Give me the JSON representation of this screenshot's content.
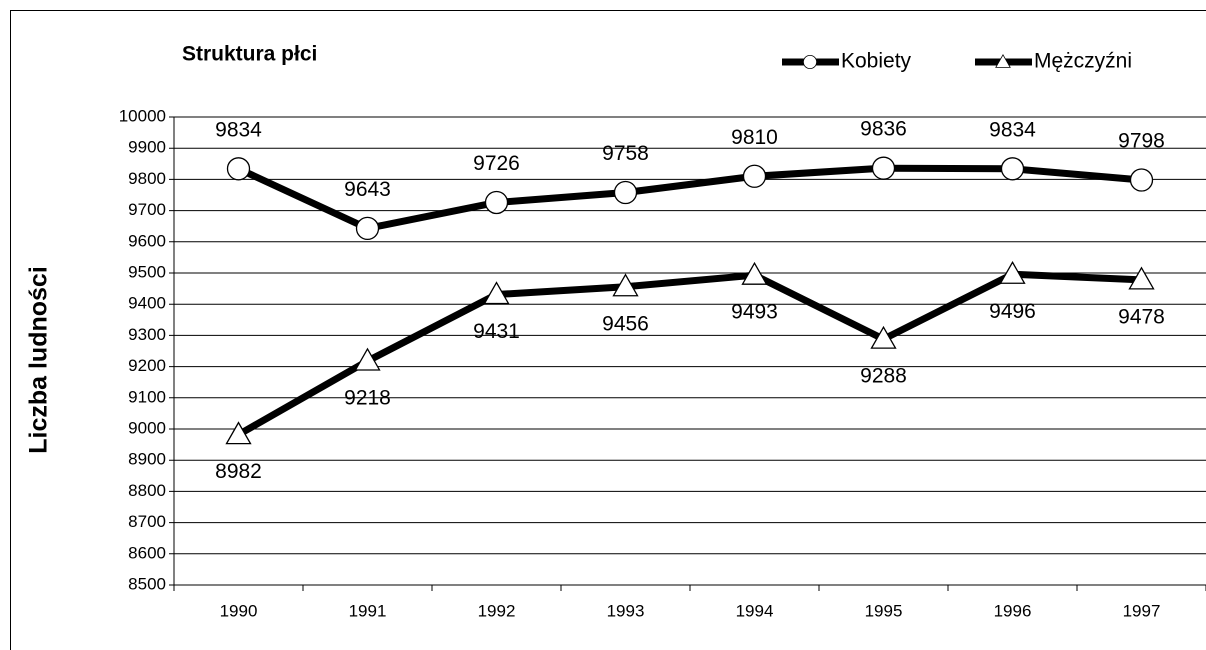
{
  "chart_data": {
    "type": "line",
    "title": "Struktura płci",
    "y_label": "Liczba ludności",
    "categories": [
      "1990",
      "1991",
      "1992",
      "1993",
      "1994",
      "1995",
      "1996",
      "1997"
    ],
    "series": [
      {
        "name": "Kobiety",
        "color": "#000000",
        "marker": "circle",
        "values": [
          9834,
          9643,
          9726,
          9758,
          9810,
          9836,
          9834,
          9798
        ]
      },
      {
        "name": "Mężczyźni",
        "color": "#000000",
        "marker": "triangle",
        "values": [
          8982,
          9218,
          9431,
          9456,
          9493,
          9288,
          9496,
          9478
        ]
      }
    ],
    "ylim": [
      8500,
      10000
    ],
    "yticks": [
      8500,
      8600,
      8700,
      8800,
      8900,
      9000,
      9100,
      9200,
      9300,
      9400,
      9500,
      9600,
      9700,
      9800,
      9900,
      10000
    ],
    "grid": true,
    "legend": "top-right"
  }
}
